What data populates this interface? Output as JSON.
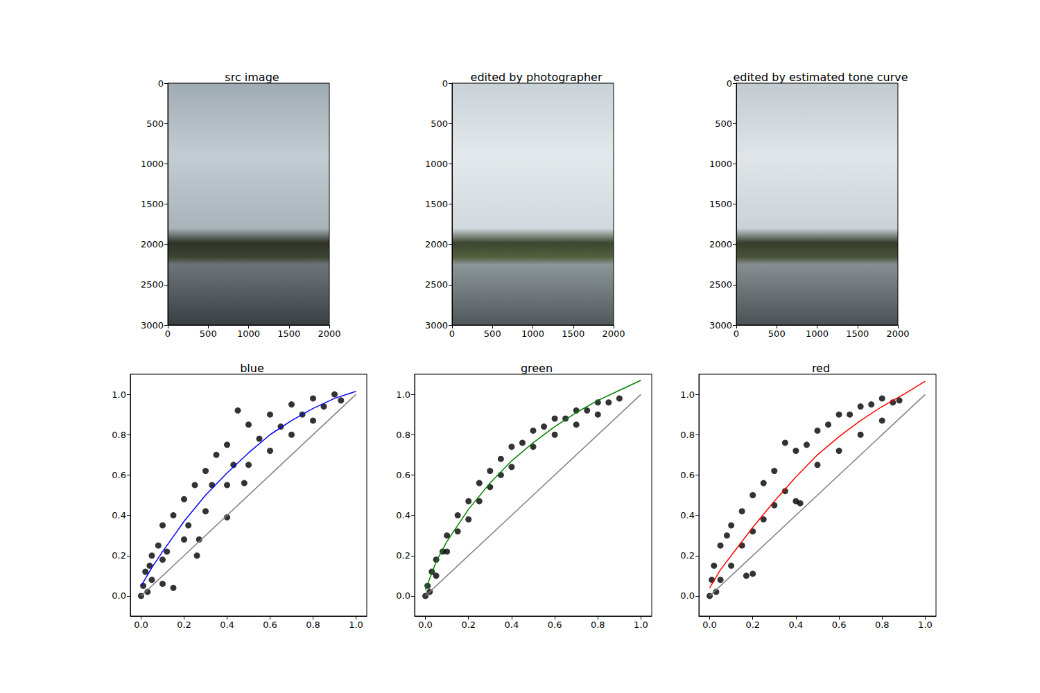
{
  "chart_data": [
    {
      "type": "image",
      "title": "src image",
      "xlim": [
        0,
        2000
      ],
      "ylim": [
        3000,
        0
      ],
      "xticks": [
        0,
        500,
        1000,
        1500,
        2000
      ],
      "yticks": [
        0,
        500,
        1000,
        1500,
        2000,
        2500,
        3000
      ]
    },
    {
      "type": "image",
      "title": "edited by photographer",
      "xlim": [
        0,
        2000
      ],
      "ylim": [
        3000,
        0
      ],
      "xticks": [
        0,
        500,
        1000,
        1500,
        2000
      ],
      "yticks": [
        0,
        500,
        1000,
        1500,
        2000,
        2500,
        3000
      ]
    },
    {
      "type": "image",
      "title": "edited by estimated tone curve",
      "xlim": [
        0,
        2000
      ],
      "ylim": [
        3000,
        0
      ],
      "xticks": [
        0,
        500,
        1000,
        1500,
        2000
      ],
      "yticks": [
        0,
        500,
        1000,
        1500,
        2000,
        2500,
        3000
      ]
    },
    {
      "type": "scatter",
      "title": "blue",
      "xlim": [
        -0.05,
        1.05
      ],
      "ylim": [
        -0.1,
        1.1
      ],
      "xticks": [
        {
          "value": 0,
          "label": "0.0"
        },
        0.2,
        0.4,
        0.6,
        0.8,
        {
          "value": 1,
          "label": "1.0"
        }
      ],
      "yticks": [
        {
          "value": 0,
          "label": "0.0"
        },
        0.2,
        0.4,
        0.6,
        0.8,
        {
          "value": 1,
          "label": "1.0"
        }
      ],
      "series": [
        {
          "type": "scatter",
          "color": "#000000",
          "x": [
            0,
            0.01,
            0.02,
            0.03,
            0.05,
            0.05,
            0.08,
            0.1,
            0.1,
            0.12,
            0.15,
            0.15,
            0.2,
            0.2,
            0.22,
            0.25,
            0.26,
            0.27,
            0.3,
            0.3,
            0.33,
            0.35,
            0.4,
            0.4,
            0.4,
            0.43,
            0.45,
            0.48,
            0.5,
            0.5,
            0.55,
            0.6,
            0.6,
            0.65,
            0.7,
            0.7,
            0.75,
            0.8,
            0.8,
            0.85,
            0.9,
            0.93,
            0.1,
            0.04
          ],
          "values": [
            0,
            0.05,
            0.12,
            0.02,
            0.2,
            0.08,
            0.25,
            0.35,
            0.06,
            0.22,
            0.04,
            0.4,
            0.48,
            0.28,
            0.35,
            0.55,
            0.2,
            0.28,
            0.62,
            0.42,
            0.55,
            0.7,
            0.39,
            0.75,
            0.55,
            0.65,
            0.92,
            0.56,
            0.85,
            0.65,
            0.78,
            0.9,
            0.72,
            0.84,
            0.95,
            0.8,
            0.9,
            0.98,
            0.87,
            0.94,
            1.0,
            0.97,
            0.18,
            0.15
          ]
        },
        {
          "type": "line",
          "color": "#0000ff",
          "x": [
            0,
            0.05,
            0.1,
            0.2,
            0.3,
            0.4,
            0.5,
            0.6,
            0.7,
            0.8,
            0.9,
            1.0
          ],
          "values": [
            0.05,
            0.14,
            0.22,
            0.37,
            0.5,
            0.61,
            0.71,
            0.8,
            0.87,
            0.93,
            0.98,
            1.015
          ]
        },
        {
          "type": "line",
          "color": "#808080",
          "x": [
            0,
            1
          ],
          "values": [
            0,
            1
          ]
        }
      ]
    },
    {
      "type": "scatter",
      "title": "green",
      "xlim": [
        -0.05,
        1.05
      ],
      "ylim": [
        -0.1,
        1.1
      ],
      "xticks": [
        {
          "value": 0,
          "label": "0.0"
        },
        0.2,
        0.4,
        0.6,
        0.8,
        {
          "value": 1,
          "label": "1.0"
        }
      ],
      "yticks": [
        {
          "value": 0,
          "label": "0.0"
        },
        0.2,
        0.4,
        0.6,
        0.8,
        {
          "value": 1,
          "label": "1.0"
        }
      ],
      "series": [
        {
          "type": "scatter",
          "color": "#000000",
          "x": [
            0,
            0.01,
            0.02,
            0.03,
            0.05,
            0.05,
            0.08,
            0.1,
            0.1,
            0.15,
            0.15,
            0.2,
            0.2,
            0.25,
            0.25,
            0.3,
            0.3,
            0.35,
            0.35,
            0.4,
            0.4,
            0.45,
            0.5,
            0.5,
            0.55,
            0.6,
            0.6,
            0.65,
            0.7,
            0.7,
            0.75,
            0.8,
            0.8,
            0.85,
            0.9
          ],
          "values": [
            0,
            0.05,
            0.02,
            0.12,
            0.18,
            0.1,
            0.22,
            0.3,
            0.22,
            0.4,
            0.32,
            0.47,
            0.38,
            0.56,
            0.47,
            0.62,
            0.54,
            0.68,
            0.6,
            0.74,
            0.64,
            0.76,
            0.82,
            0.74,
            0.84,
            0.88,
            0.8,
            0.88,
            0.92,
            0.85,
            0.92,
            0.96,
            0.9,
            0.96,
            0.98
          ]
        },
        {
          "type": "line",
          "color": "#008000",
          "x": [
            0,
            0.05,
            0.1,
            0.2,
            0.3,
            0.4,
            0.5,
            0.6,
            0.7,
            0.8,
            0.9,
            1.0
          ],
          "values": [
            0.03,
            0.17,
            0.27,
            0.43,
            0.56,
            0.67,
            0.76,
            0.84,
            0.91,
            0.97,
            1.02,
            1.07
          ]
        },
        {
          "type": "line",
          "color": "#808080",
          "x": [
            0,
            1
          ],
          "values": [
            0,
            1
          ]
        }
      ]
    },
    {
      "type": "scatter",
      "title": "red",
      "xlim": [
        -0.05,
        1.05
      ],
      "ylim": [
        -0.1,
        1.1
      ],
      "xticks": [
        {
          "value": 0,
          "label": "0.0"
        },
        0.2,
        0.4,
        0.6,
        0.8,
        {
          "value": 1,
          "label": "1.0"
        }
      ],
      "yticks": [
        {
          "value": 0,
          "label": "0.0"
        },
        0.2,
        0.4,
        0.6,
        0.8,
        {
          "value": 1,
          "label": "1.0"
        }
      ],
      "series": [
        {
          "type": "scatter",
          "color": "#000000",
          "x": [
            0,
            0.01,
            0.02,
            0.03,
            0.05,
            0.05,
            0.08,
            0.1,
            0.1,
            0.15,
            0.15,
            0.17,
            0.2,
            0.2,
            0.2,
            0.25,
            0.25,
            0.3,
            0.3,
            0.35,
            0.35,
            0.4,
            0.4,
            0.42,
            0.45,
            0.5,
            0.5,
            0.55,
            0.6,
            0.6,
            0.65,
            0.7,
            0.7,
            0.75,
            0.8,
            0.8,
            0.85,
            0.88
          ],
          "values": [
            0,
            0.08,
            0.15,
            0.02,
            0.25,
            0.08,
            0.3,
            0.35,
            0.15,
            0.42,
            0.25,
            0.1,
            0.5,
            0.32,
            0.11,
            0.56,
            0.38,
            0.62,
            0.45,
            0.76,
            0.52,
            0.72,
            0.47,
            0.46,
            0.75,
            0.82,
            0.65,
            0.85,
            0.9,
            0.72,
            0.9,
            0.94,
            0.8,
            0.95,
            0.98,
            0.87,
            0.96,
            0.97
          ]
        },
        {
          "type": "line",
          "color": "#ff0000",
          "x": [
            0,
            0.05,
            0.1,
            0.2,
            0.3,
            0.4,
            0.5,
            0.6,
            0.7,
            0.8,
            0.9,
            1.0
          ],
          "values": [
            0.04,
            0.13,
            0.2,
            0.34,
            0.47,
            0.59,
            0.7,
            0.79,
            0.87,
            0.94,
            1.0,
            1.065
          ]
        },
        {
          "type": "line",
          "color": "#808080",
          "x": [
            0,
            1
          ],
          "values": [
            0,
            1
          ]
        }
      ]
    }
  ]
}
